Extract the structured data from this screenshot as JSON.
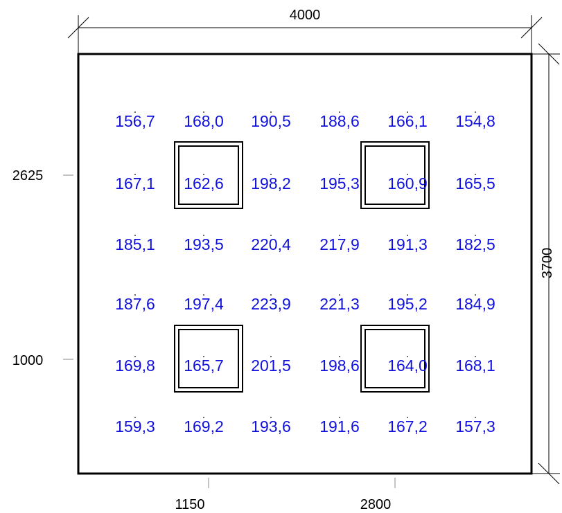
{
  "dimensions": {
    "width_label": "4000",
    "height_label": "3700",
    "left_top": "2625",
    "left_bottom": "1000",
    "bottom_left": "1150",
    "bottom_right": "2800"
  },
  "grid_values": [
    [
      "156,7",
      "168,0",
      "190,5",
      "188,6",
      "166,1",
      "154,8"
    ],
    [
      "167,1",
      "162,6",
      "198,2",
      "195,3",
      "160,9",
      "165,5"
    ],
    [
      "185,1",
      "193,5",
      "220,4",
      "217,9",
      "191,3",
      "182,5"
    ],
    [
      "187,6",
      "197,4",
      "223,9",
      "221,3",
      "195,2",
      "184,9"
    ],
    [
      "169,8",
      "165,7",
      "201,5",
      "198,6",
      "164,0",
      "168,1"
    ],
    [
      "159,3",
      "169,2",
      "193,6",
      "191,6",
      "167,2",
      "157,3"
    ]
  ],
  "colors": {
    "values": "#1010dd",
    "lines": "#000000"
  }
}
